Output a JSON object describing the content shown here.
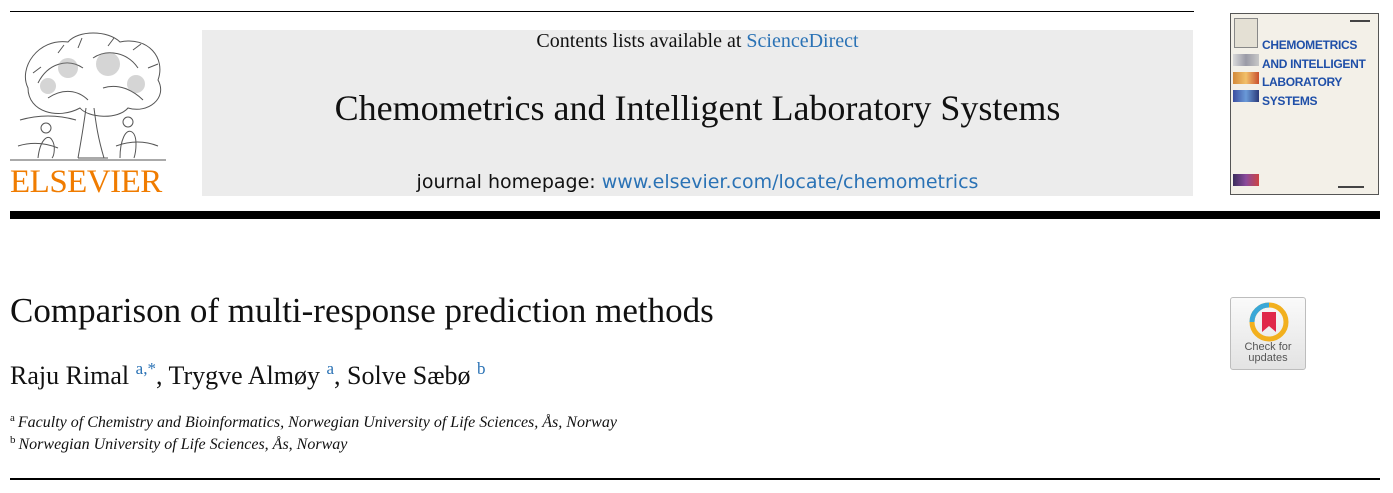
{
  "publisher": {
    "wordmark": "ELSEVIER",
    "logo_icon": "tree-and-figures-emblem",
    "color": "#f07c00"
  },
  "banner": {
    "contents_prefix": "Contents lists available at ",
    "contents_link": "ScienceDirect",
    "journal_title": "Chemometrics and Intelligent Laboratory Systems",
    "homepage_prefix": "journal homepage: ",
    "homepage_link": "www.elsevier.com/locate/chemometrics",
    "background": "#ececec",
    "link_color": "#2a72b5"
  },
  "cover": {
    "lines": [
      "CHEMOMETRICS",
      "AND INTELLIGENT",
      "LABORATORY",
      "SYSTEMS"
    ],
    "title_color": "#1f4fa8"
  },
  "article": {
    "title": "Comparison of multi-response prediction methods",
    "authors": [
      {
        "name": "Raju Rimal",
        "marks": "a,*",
        "separator": ", "
      },
      {
        "name": "Trygve Almøy",
        "marks": "a",
        "separator": ", "
      },
      {
        "name": "Solve Sæbø",
        "marks": "b",
        "separator": ""
      }
    ],
    "affiliations": [
      {
        "mark": "a",
        "text": "Faculty of Chemistry and Bioinformatics, Norwegian University of Life Sciences, Ås, Norway"
      },
      {
        "mark": "b",
        "text": "Norwegian University of Life Sciences, Ås, Norway"
      }
    ]
  },
  "updates_badge": {
    "line1": "Check for",
    "line2": "updates",
    "icon": "bookmark-ribbon-icon"
  }
}
